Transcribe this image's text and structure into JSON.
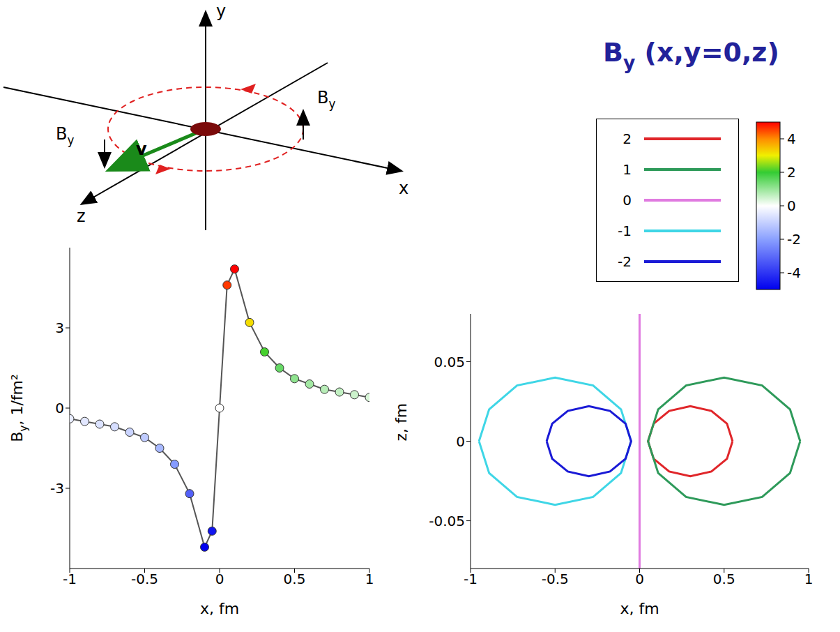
{
  "chart_data": [
    {
      "type": "line",
      "title": "By (x,y=0,z)",
      "x_label": "x, fm",
      "y_label": "By, 1/fm²",
      "x": [
        -1,
        -0.9,
        -0.8,
        -0.7,
        -0.6,
        -0.5,
        -0.4,
        -0.3,
        -0.2,
        -0.1,
        -0.05,
        0,
        0.05,
        0.1,
        0.2,
        0.3,
        0.4,
        0.5,
        0.6,
        0.7,
        0.8,
        0.9,
        1
      ],
      "values": [
        -0.4,
        -0.5,
        -0.6,
        -0.7,
        -0.9,
        -1.1,
        -1.5,
        -2.1,
        -3.2,
        -5.2,
        -4.6,
        0,
        4.6,
        5.2,
        3.2,
        2.1,
        1.5,
        1.1,
        0.9,
        0.7,
        0.6,
        0.5,
        0.4
      ],
      "xlim": [
        -1,
        1
      ],
      "xticks": [
        -1,
        -0.5,
        0,
        0.5,
        1
      ],
      "ylim": [
        -6,
        6
      ],
      "yticks": [
        -3,
        0,
        3
      ],
      "colorbar": {
        "range": [
          -5,
          5
        ],
        "ticks": [
          4,
          2,
          0,
          -2,
          -4
        ]
      }
    },
    {
      "type": "contour",
      "x_label": "x, fm",
      "y_label": "z, fm",
      "xlim": [
        -1,
        1
      ],
      "xticks": [
        -1,
        -0.5,
        0,
        0.5,
        1
      ],
      "ylim": [
        -0.08,
        0.08
      ],
      "yticks": [
        -0.05,
        0,
        0.05
      ],
      "legend": "upper right",
      "series": [
        {
          "name": "2",
          "color": "#e0262a",
          "x": [
            0.55,
            0.517,
            0.425,
            0.3,
            0.175,
            0.083,
            0.05,
            0.083,
            0.175,
            0.3,
            0.425,
            0.517,
            0.55
          ],
          "values": [
            0,
            0.011,
            0.019,
            0.022,
            0.019,
            0.011,
            0,
            -0.011,
            -0.019,
            -0.022,
            -0.019,
            -0.011,
            0
          ]
        },
        {
          "name": "1",
          "color": "#2e9a5a",
          "x": [
            0.95,
            0.89,
            0.725,
            0.5,
            0.275,
            0.11,
            0.05,
            0.11,
            0.275,
            0.5,
            0.725,
            0.89,
            0.95
          ],
          "values": [
            0,
            0.02,
            0.035,
            0.04,
            0.035,
            0.02,
            0,
            -0.02,
            -0.035,
            -0.04,
            -0.035,
            -0.02,
            0
          ]
        },
        {
          "name": "0",
          "color": "#e07be0",
          "x": [
            0,
            0
          ],
          "values": [
            -0.08,
            0.08
          ]
        },
        {
          "name": "-1",
          "color": "#3fd6e6",
          "x": [
            -0.95,
            -0.89,
            -0.725,
            -0.5,
            -0.275,
            -0.11,
            -0.05,
            -0.11,
            -0.275,
            -0.5,
            -0.725,
            -0.89,
            -0.95
          ],
          "values": [
            0,
            0.02,
            0.035,
            0.04,
            0.035,
            0.02,
            0,
            -0.02,
            -0.035,
            -0.04,
            -0.035,
            -0.02,
            0
          ]
        },
        {
          "name": "-2",
          "color": "#1a1ad6",
          "x": [
            -0.55,
            -0.517,
            -0.425,
            -0.3,
            -0.175,
            -0.083,
            -0.05,
            -0.083,
            -0.175,
            -0.3,
            -0.425,
            -0.517,
            -0.55
          ],
          "values": [
            0,
            0.011,
            0.019,
            0.022,
            0.019,
            0.011,
            0,
            -0.011,
            -0.019,
            -0.022,
            -0.019,
            -0.011,
            0
          ]
        }
      ]
    }
  ],
  "inset": {
    "axis_labels": [
      "y",
      "x",
      "z"
    ],
    "field_labels": [
      "By",
      "By"
    ],
    "velocity_label": "v"
  }
}
